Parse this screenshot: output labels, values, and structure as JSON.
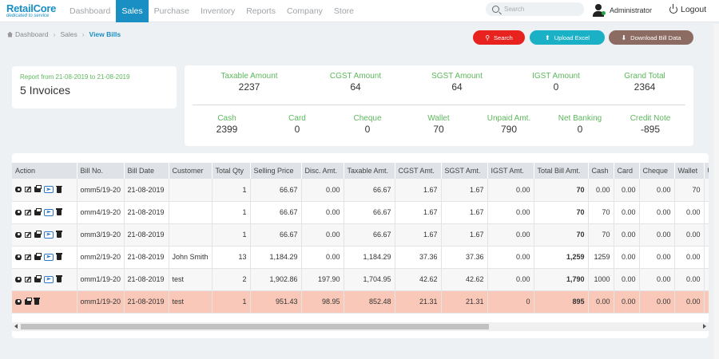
{
  "brand": {
    "name": "RetailCore",
    "tagline": "dedicated to service"
  },
  "nav": {
    "items": [
      "Dashboard",
      "Sales",
      "Purchase",
      "Inventory",
      "Reports",
      "Company",
      "Store"
    ],
    "active_index": 1,
    "search_placeholder": "Search",
    "user": "Administrator",
    "logout": "Logout"
  },
  "breadcrumb": [
    "Dashboard",
    "Sales",
    "View Bills"
  ],
  "actions": {
    "search": "Search",
    "upload": "Upload Excel",
    "download": "Download Bill Data"
  },
  "report": {
    "range": "Report from 21-08-2019 to 21-08-2019",
    "count": "5 Invoices"
  },
  "totals_top": [
    {
      "label": "Taxable Amount",
      "value": "2237"
    },
    {
      "label": "CGST Amount",
      "value": "64"
    },
    {
      "label": "SGST Amount",
      "value": "64"
    },
    {
      "label": "IGST Amount",
      "value": "0"
    },
    {
      "label": "Grand Total",
      "value": "2364"
    }
  ],
  "totals_bottom": [
    {
      "label": "Cash",
      "value": "2399"
    },
    {
      "label": "Card",
      "value": "0"
    },
    {
      "label": "Cheque",
      "value": "0"
    },
    {
      "label": "Wallet",
      "value": "70"
    },
    {
      "label": "Unpaid Amt.",
      "value": "790"
    },
    {
      "label": "Net Banking",
      "value": "0"
    },
    {
      "label": "Credit Note",
      "value": "-895"
    }
  ],
  "table": {
    "columns": [
      "Action",
      "Bill No.",
      "Bill Date",
      "Customer",
      "Total Qty",
      "Selling Price",
      "Disc. Amt.",
      "Taxable Amt.",
      "CGST Amt.",
      "SGST Amt.",
      "IGST Amt.",
      "Total Bill Amt.",
      "Cash",
      "Card",
      "Cheque",
      "Wallet",
      "U"
    ],
    "rows": [
      {
        "bill": "omm5/19-20",
        "date": "21-08-2019",
        "customer": "",
        "qty": "1",
        "price": "66.67",
        "disc": "0.00",
        "taxable": "66.67",
        "cgst": "1.67",
        "sgst": "1.67",
        "igst": "0.00",
        "total": "70",
        "cash": "0.00",
        "card": "0.00",
        "cheque": "0.00",
        "wallet": "70"
      },
      {
        "bill": "omm4/19-20",
        "date": "21-08-2019",
        "customer": "",
        "qty": "1",
        "price": "66.67",
        "disc": "0.00",
        "taxable": "66.67",
        "cgst": "1.67",
        "sgst": "1.67",
        "igst": "0.00",
        "total": "70",
        "cash": "70",
        "card": "0.00",
        "cheque": "0.00",
        "wallet": "0.00"
      },
      {
        "bill": "omm3/19-20",
        "date": "21-08-2019",
        "customer": "",
        "qty": "1",
        "price": "66.67",
        "disc": "0.00",
        "taxable": "66.67",
        "cgst": "1.67",
        "sgst": "1.67",
        "igst": "0.00",
        "total": "70",
        "cash": "70",
        "card": "0.00",
        "cheque": "0.00",
        "wallet": "0.00"
      },
      {
        "bill": "omm2/19-20",
        "date": "21-08-2019",
        "customer": "John Smith",
        "qty": "13",
        "price": "1,184.29",
        "disc": "0.00",
        "taxable": "1,184.29",
        "cgst": "37.36",
        "sgst": "37.36",
        "igst": "0.00",
        "total": "1,259",
        "cash": "1259",
        "card": "0.00",
        "cheque": "0.00",
        "wallet": "0.00"
      },
      {
        "bill": "omm1/19-20",
        "date": "21-08-2019",
        "customer": "test",
        "qty": "2",
        "price": "1,902.86",
        "disc": "197.90",
        "taxable": "1,704.95",
        "cgst": "42.62",
        "sgst": "42.62",
        "igst": "0.00",
        "total": "1,790",
        "cash": "1000",
        "card": "0.00",
        "cheque": "0.00",
        "wallet": "0.00"
      },
      {
        "bill": "omm1/19-20",
        "date": "21-08-2019",
        "customer": "test",
        "qty": "1",
        "price": "951.43",
        "disc": "98.95",
        "taxable": "852.48",
        "cgst": "21.31",
        "sgst": "21.31",
        "igst": "0",
        "total": "895",
        "cash": "0.00",
        "card": "0.00",
        "cheque": "0.00",
        "wallet": "0.00"
      }
    ]
  },
  "colors": {
    "accent": "#1a8fc4",
    "label_green": "#5cb85c",
    "search_red": "#e8231f",
    "upload_teal": "#1ab0c5",
    "download_brown": "#8c6b62",
    "highlight_row": "#f9c8b8"
  }
}
